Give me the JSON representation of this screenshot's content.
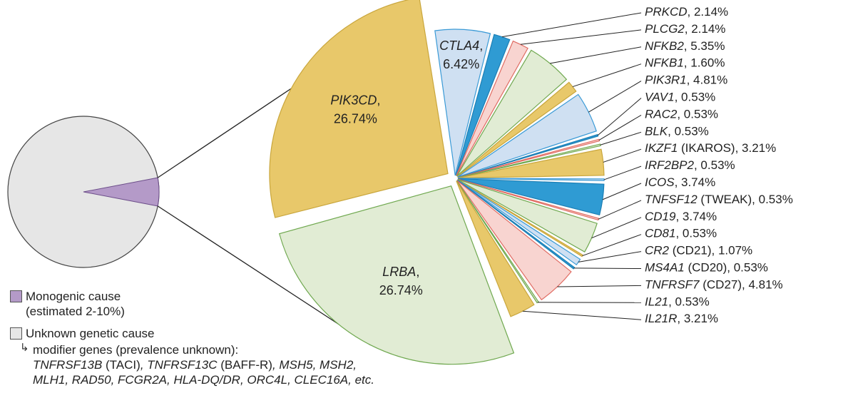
{
  "colors": {
    "gold": "#e8c86a",
    "gold_stroke": "#c9a63c",
    "green": "#e1ecd4",
    "green_stroke": "#6fa84f",
    "blue": "#cfe0f2",
    "blue_stroke": "#3a9ad6",
    "dark_blue": "#2f9bd3",
    "dark_blue_stroke": "#1d7fb5",
    "pink": "#f8d4d0",
    "pink_stroke": "#e06b62",
    "gray": "#e6e6e6",
    "gray_stroke": "#444444",
    "purple": "#b49ac8",
    "purple_stroke": "#6d4f8a"
  },
  "chart_data": [
    {
      "type": "pie",
      "slices": [
        {
          "label": "Monogenic cause",
          "value": 6,
          "color": "purple"
        },
        {
          "label": "Unknown genetic cause",
          "value": 94,
          "color": "gray"
        }
      ]
    },
    {
      "type": "pie",
      "slices": [
        {
          "gene": "CTLA4",
          "qualifier": "",
          "value": 6.42,
          "value_text": "6.42%",
          "color": "blue"
        },
        {
          "gene": "PRKCD",
          "qualifier": "",
          "value": 2.14,
          "value_text": "2.14%",
          "color": "dark_blue"
        },
        {
          "gene": "PLCG2",
          "qualifier": "",
          "value": 2.14,
          "value_text": "2.14%",
          "color": "pink"
        },
        {
          "gene": "NFKB2",
          "qualifier": "",
          "value": 5.35,
          "value_text": "5.35%",
          "color": "green"
        },
        {
          "gene": "NFKB1",
          "qualifier": "",
          "value": 1.6,
          "value_text": "1.60%",
          "color": "gold"
        },
        {
          "gene": "PIK3R1",
          "qualifier": "",
          "value": 4.81,
          "value_text": "4.81%",
          "color": "blue"
        },
        {
          "gene": "VAV1",
          "qualifier": "",
          "value": 0.53,
          "value_text": "0.53%",
          "color": "dark_blue"
        },
        {
          "gene": "RAC2",
          "qualifier": "",
          "value": 0.53,
          "value_text": "0.53%",
          "color": "pink"
        },
        {
          "gene": "BLK",
          "qualifier": "",
          "value": 0.53,
          "value_text": "0.53%",
          "color": "green"
        },
        {
          "gene": "IKZF1",
          "qualifier": "(IKAROS)",
          "value": 3.21,
          "value_text": "3.21%",
          "color": "gold"
        },
        {
          "gene": "IRF2BP2",
          "qualifier": "",
          "value": 0.53,
          "value_text": "0.53%",
          "color": "blue"
        },
        {
          "gene": "ICOS",
          "qualifier": "",
          "value": 3.74,
          "value_text": "3.74%",
          "color": "dark_blue"
        },
        {
          "gene": "TNFSF12",
          "qualifier": "(TWEAK)",
          "value": 0.53,
          "value_text": "0.53%",
          "color": "pink"
        },
        {
          "gene": "CD19",
          "qualifier": "",
          "value": 3.74,
          "value_text": "3.74%",
          "color": "green"
        },
        {
          "gene": "CD81",
          "qualifier": "",
          "value": 0.53,
          "value_text": "0.53%",
          "color": "gold"
        },
        {
          "gene": "CR2",
          "qualifier": "(CD21)",
          "value": 1.07,
          "value_text": "1.07%",
          "color": "blue"
        },
        {
          "gene": "MS4A1",
          "qualifier": "(CD20)",
          "value": 0.53,
          "value_text": "0.53%",
          "color": "dark_blue"
        },
        {
          "gene": "TNFRSF7",
          "qualifier": "(CD27)",
          "value": 4.81,
          "value_text": "4.81%",
          "color": "pink"
        },
        {
          "gene": "IL21",
          "qualifier": "",
          "value": 0.53,
          "value_text": "0.53%",
          "color": "green"
        },
        {
          "gene": "IL21R",
          "qualifier": "",
          "value": 3.21,
          "value_text": "3.21%",
          "color": "gold"
        },
        {
          "gene": "LRBA",
          "qualifier": "",
          "value": 26.74,
          "value_text": "26.74%",
          "color": "green"
        },
        {
          "gene": "PIK3CD",
          "qualifier": "",
          "value": 26.74,
          "value_text": "26.74%",
          "color": "gold"
        }
      ]
    }
  ],
  "legend": {
    "monogenic_line1": "Monogenic cause",
    "monogenic_line2": "(estimated 2-10%)",
    "unknown_label": "Unknown genetic cause",
    "modifier_intro": "modifier genes (prevalence unknown):",
    "modifier_line1": [
      {
        "t": "TNFRSF13B",
        "i": true
      },
      {
        "t": " (TACI)",
        "i": false
      },
      {
        "t": ", TNFRSF13C",
        "i": true
      },
      {
        "t": " (BAFF-R)",
        "i": false
      },
      {
        "t": ", MSH5, MSH2,",
        "i": true
      }
    ],
    "modifier_line2": [
      {
        "t": "MLH1, RAD50, FCGR2A, HLA-DQ/DR, ORC4L, CLEC16A, etc.",
        "i": true
      }
    ]
  }
}
